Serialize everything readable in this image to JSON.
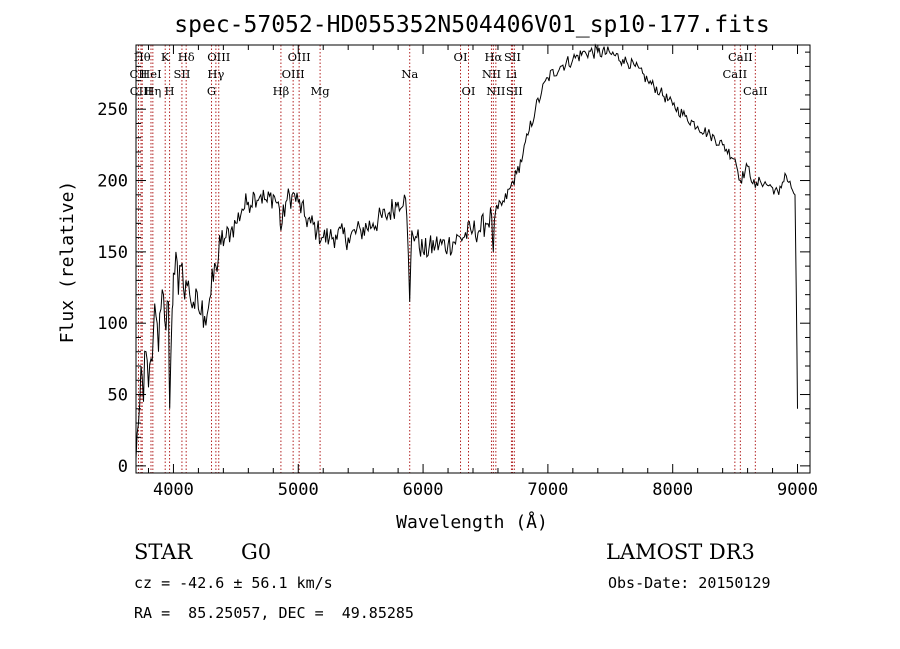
{
  "chart_data": {
    "type": "line",
    "title": "spec-57052-HD055352N504406V01_sp10-177.fits",
    "xlabel": "Wavelength (Å)",
    "ylabel": "Flux (relative)",
    "xlim": [
      3700,
      9100
    ],
    "ylim": [
      -5,
      295
    ],
    "xticks": [
      4000,
      5000,
      6000,
      7000,
      8000,
      9000
    ],
    "yticks": [
      0,
      50,
      100,
      150,
      200,
      250
    ],
    "series": [
      {
        "name": "flux",
        "x": [
          3700,
          3720,
          3740,
          3760,
          3780,
          3800,
          3820,
          3840,
          3860,
          3880,
          3900,
          3920,
          3940,
          3960,
          3970,
          3990,
          4000,
          4020,
          4040,
          4060,
          4080,
          4100,
          4130,
          4160,
          4200,
          4250,
          4300,
          4340,
          4380,
          4420,
          4460,
          4500,
          4550,
          4600,
          4650,
          4700,
          4750,
          4800,
          4850,
          4861,
          4900,
          4950,
          5000,
          5050,
          5100,
          5150,
          5200,
          5250,
          5300,
          5400,
          5500,
          5600,
          5700,
          5800,
          5850,
          5870,
          5893,
          5910,
          5950,
          6000,
          6100,
          6200,
          6300,
          6400,
          6450,
          6500,
          6550,
          6563,
          6580,
          6600,
          6650,
          6700,
          6750,
          6800,
          6850,
          6900,
          6950,
          7000,
          7100,
          7200,
          7300,
          7400,
          7500,
          7600,
          7700,
          7800,
          7900,
          8000,
          8100,
          8200,
          8300,
          8400,
          8500,
          8542,
          8600,
          8662,
          8700,
          8800,
          8850,
          8900,
          8950,
          8980,
          8990,
          9000
        ],
        "y": [
          5,
          30,
          70,
          45,
          80,
          55,
          75,
          95,
          105,
          80,
          110,
          120,
          95,
          115,
          40,
          110,
          135,
          150,
          120,
          140,
          125,
          130,
          120,
          115,
          110,
          105,
          120,
          140,
          155,
          160,
          165,
          170,
          180,
          185,
          190,
          190,
          185,
          190,
          180,
          165,
          185,
          190,
          185,
          175,
          170,
          165,
          160,
          160,
          162,
          160,
          165,
          170,
          175,
          185,
          190,
          175,
          115,
          165,
          160,
          150,
          155,
          155,
          160,
          165,
          165,
          170,
          175,
          150,
          178,
          180,
          185,
          195,
          205,
          218,
          235,
          250,
          262,
          272,
          280,
          285,
          290,
          290,
          289,
          285,
          280,
          270,
          262,
          253,
          245,
          238,
          232,
          225,
          215,
          200,
          210,
          195,
          200,
          195,
          190,
          205,
          195,
          190,
          120,
          40
        ]
      }
    ],
    "line_markers": [
      {
        "label": "Hθ",
        "x": 3750,
        "row": 0
      },
      {
        "label": "CII",
        "x": 3720,
        "row": 1
      },
      {
        "label": "CIII",
        "x": 3740,
        "row": 2
      },
      {
        "label": "Hη",
        "x": 3835,
        "row": 2
      },
      {
        "label": "HeI",
        "x": 3820,
        "row": 1
      },
      {
        "label": "K",
        "x": 3934,
        "row": 0
      },
      {
        "label": "H",
        "x": 3969,
        "row": 2
      },
      {
        "label": "SII",
        "x": 4068,
        "row": 1
      },
      {
        "label": "Hδ",
        "x": 4102,
        "row": 0
      },
      {
        "label": "OIII",
        "x": 4363,
        "row": 0
      },
      {
        "label": "Hγ",
        "x": 4340,
        "row": 1
      },
      {
        "label": "G",
        "x": 4305,
        "row": 2
      },
      {
        "label": "Hβ",
        "x": 4861,
        "row": 2
      },
      {
        "label": "OIII",
        "x": 5007,
        "row": 0
      },
      {
        "label": "OIII",
        "x": 4959,
        "row": 1
      },
      {
        "label": "Mg",
        "x": 5175,
        "row": 2
      },
      {
        "label": "Na",
        "x": 5893,
        "row": 1
      },
      {
        "label": "OI",
        "x": 6300,
        "row": 0
      },
      {
        "label": "OI",
        "x": 6364,
        "row": 2
      },
      {
        "label": "Hα",
        "x": 6563,
        "row": 0
      },
      {
        "label": "NII",
        "x": 6548,
        "row": 1
      },
      {
        "label": "NII",
        "x": 6583,
        "row": 2
      },
      {
        "label": "SII",
        "x": 6716,
        "row": 0
      },
      {
        "label": "Li",
        "x": 6708,
        "row": 1
      },
      {
        "label": "SII",
        "x": 6731,
        "row": 2
      },
      {
        "label": "CaII",
        "x": 8542,
        "row": 0
      },
      {
        "label": "CaII",
        "x": 8498,
        "row": 1
      },
      {
        "label": "CaII",
        "x": 8662,
        "row": 2
      }
    ]
  },
  "info": {
    "object_type": "STAR",
    "subclass": "G0",
    "survey": "LAMOST DR3",
    "redshift": "cz = -42.6 ± 56.1 km/s",
    "obs_date": "Obs-Date: 20150129",
    "coords": "RA =  85.25057, DEC =  49.85285"
  },
  "colors": {
    "line": "#000000",
    "marker": "#b22222",
    "background": "#ffffff"
  }
}
